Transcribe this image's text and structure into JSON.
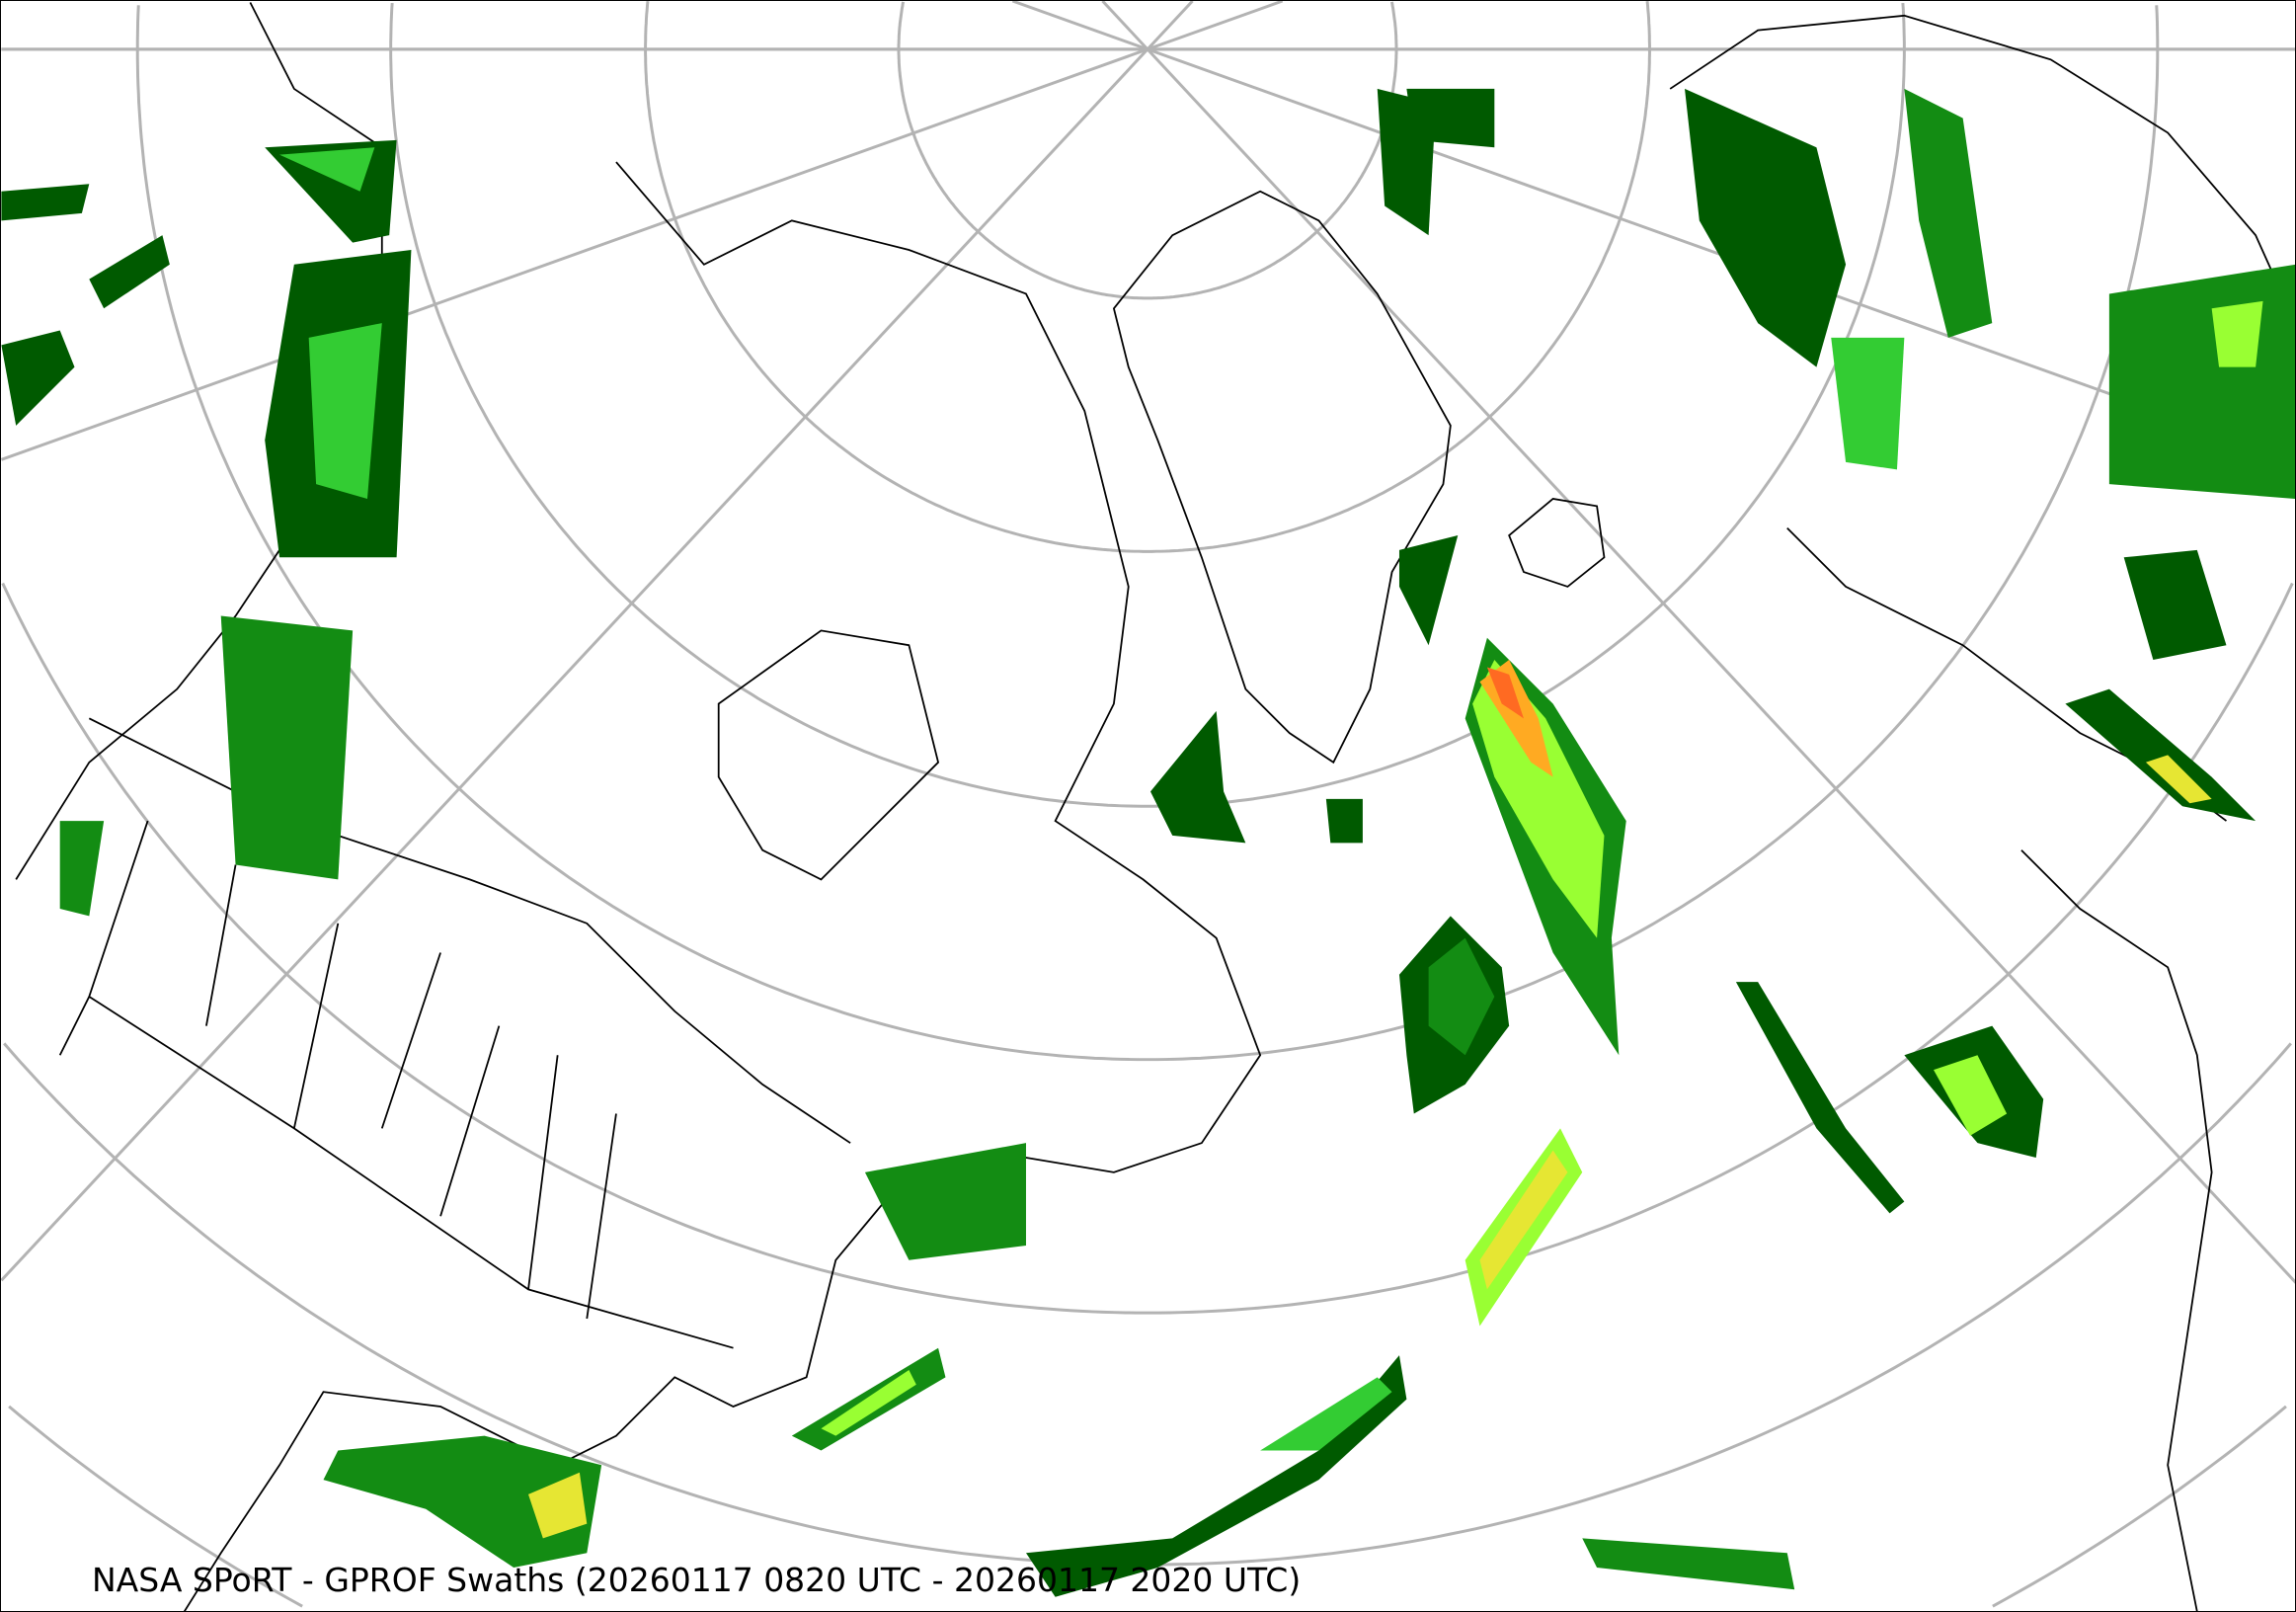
{
  "caption": "NASA SPoRT - GPROF Swaths (20260117 0820 UTC - 20260117 2020 UTC)",
  "map": {
    "projection": "north-polar-stereographic",
    "graticule_color": "#b3b3b3",
    "border_color": "#000000",
    "precip_colors": [
      "#005a00",
      "#138c13",
      "#33cc33",
      "#99ff33",
      "#e6e633",
      "#ffaa22",
      "#ff6a22"
    ]
  }
}
